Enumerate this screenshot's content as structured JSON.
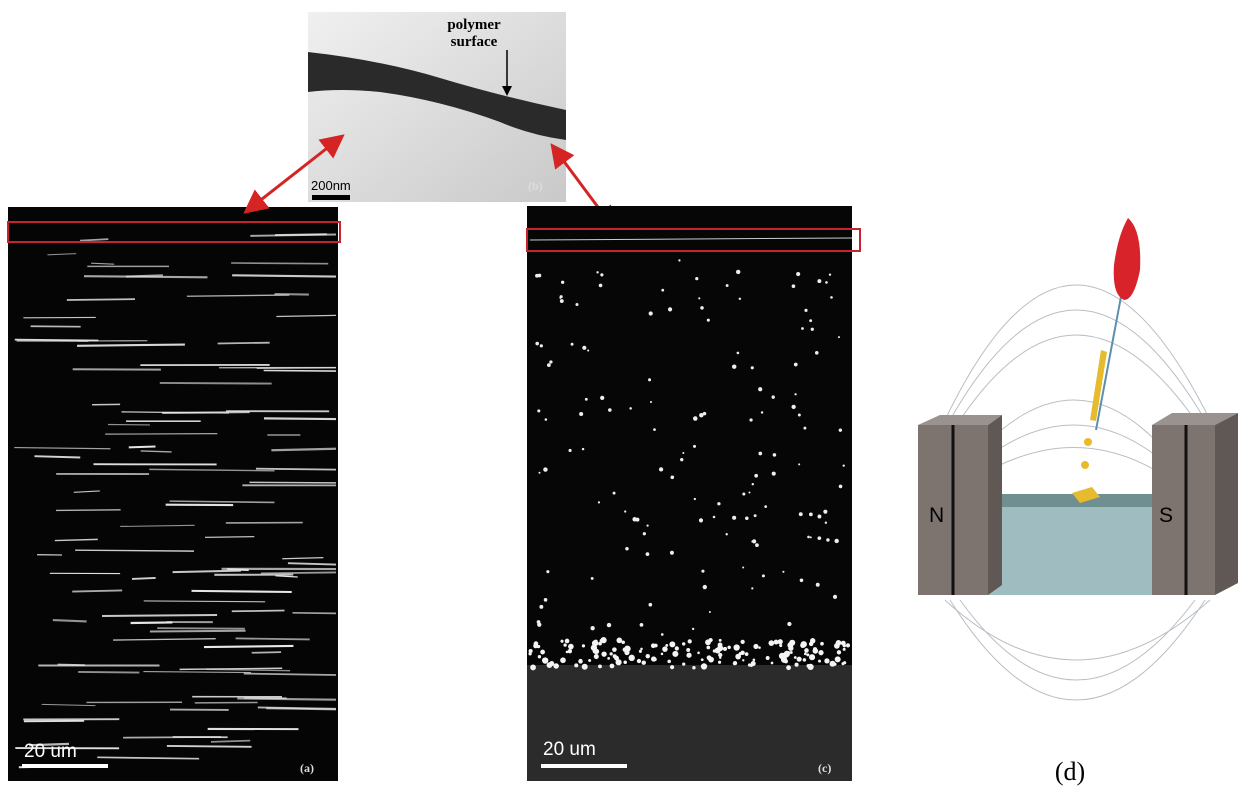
{
  "panel_a": {
    "scale_bar": "20 um",
    "label": "(a)"
  },
  "panel_b": {
    "annotation": [
      "polymer",
      "surface"
    ],
    "scale_bar": "200nm",
    "label": "(b)"
  },
  "panel_c": {
    "scale_bar": "20 um",
    "label": "(c)"
  },
  "panel_d": {
    "magnet_left": "N",
    "magnet_right": "S",
    "label": "(d)"
  }
}
